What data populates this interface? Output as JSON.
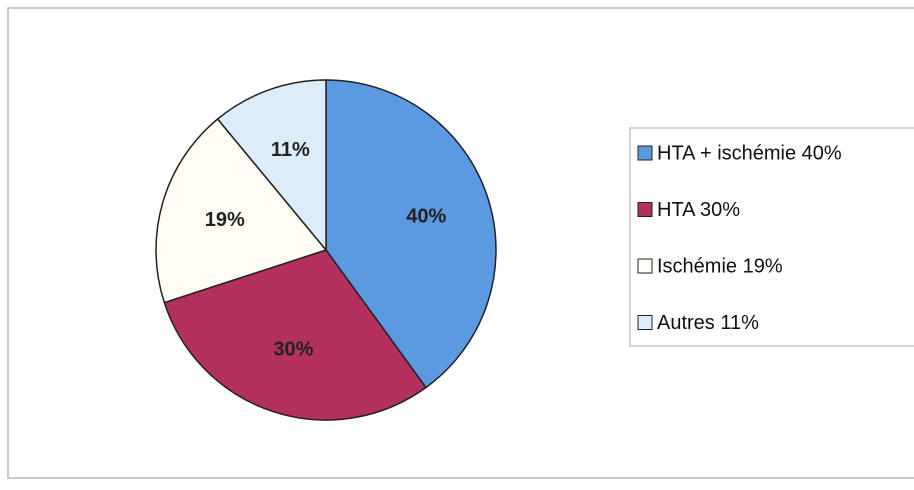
{
  "chart_data": {
    "type": "pie",
    "categories": [
      "HTA + ischémie 40%",
      "HTA 30%",
      "Ischémie 19%",
      "Autres 11%"
    ],
    "values": [
      40,
      30,
      19,
      11
    ],
    "value_labels": [
      "40%",
      "30%",
      "19%",
      "11%"
    ],
    "colors": [
      "#5b9ae0",
      "#b3305f",
      "#fffdf4",
      "#dcedf9"
    ],
    "legend": "right"
  }
}
